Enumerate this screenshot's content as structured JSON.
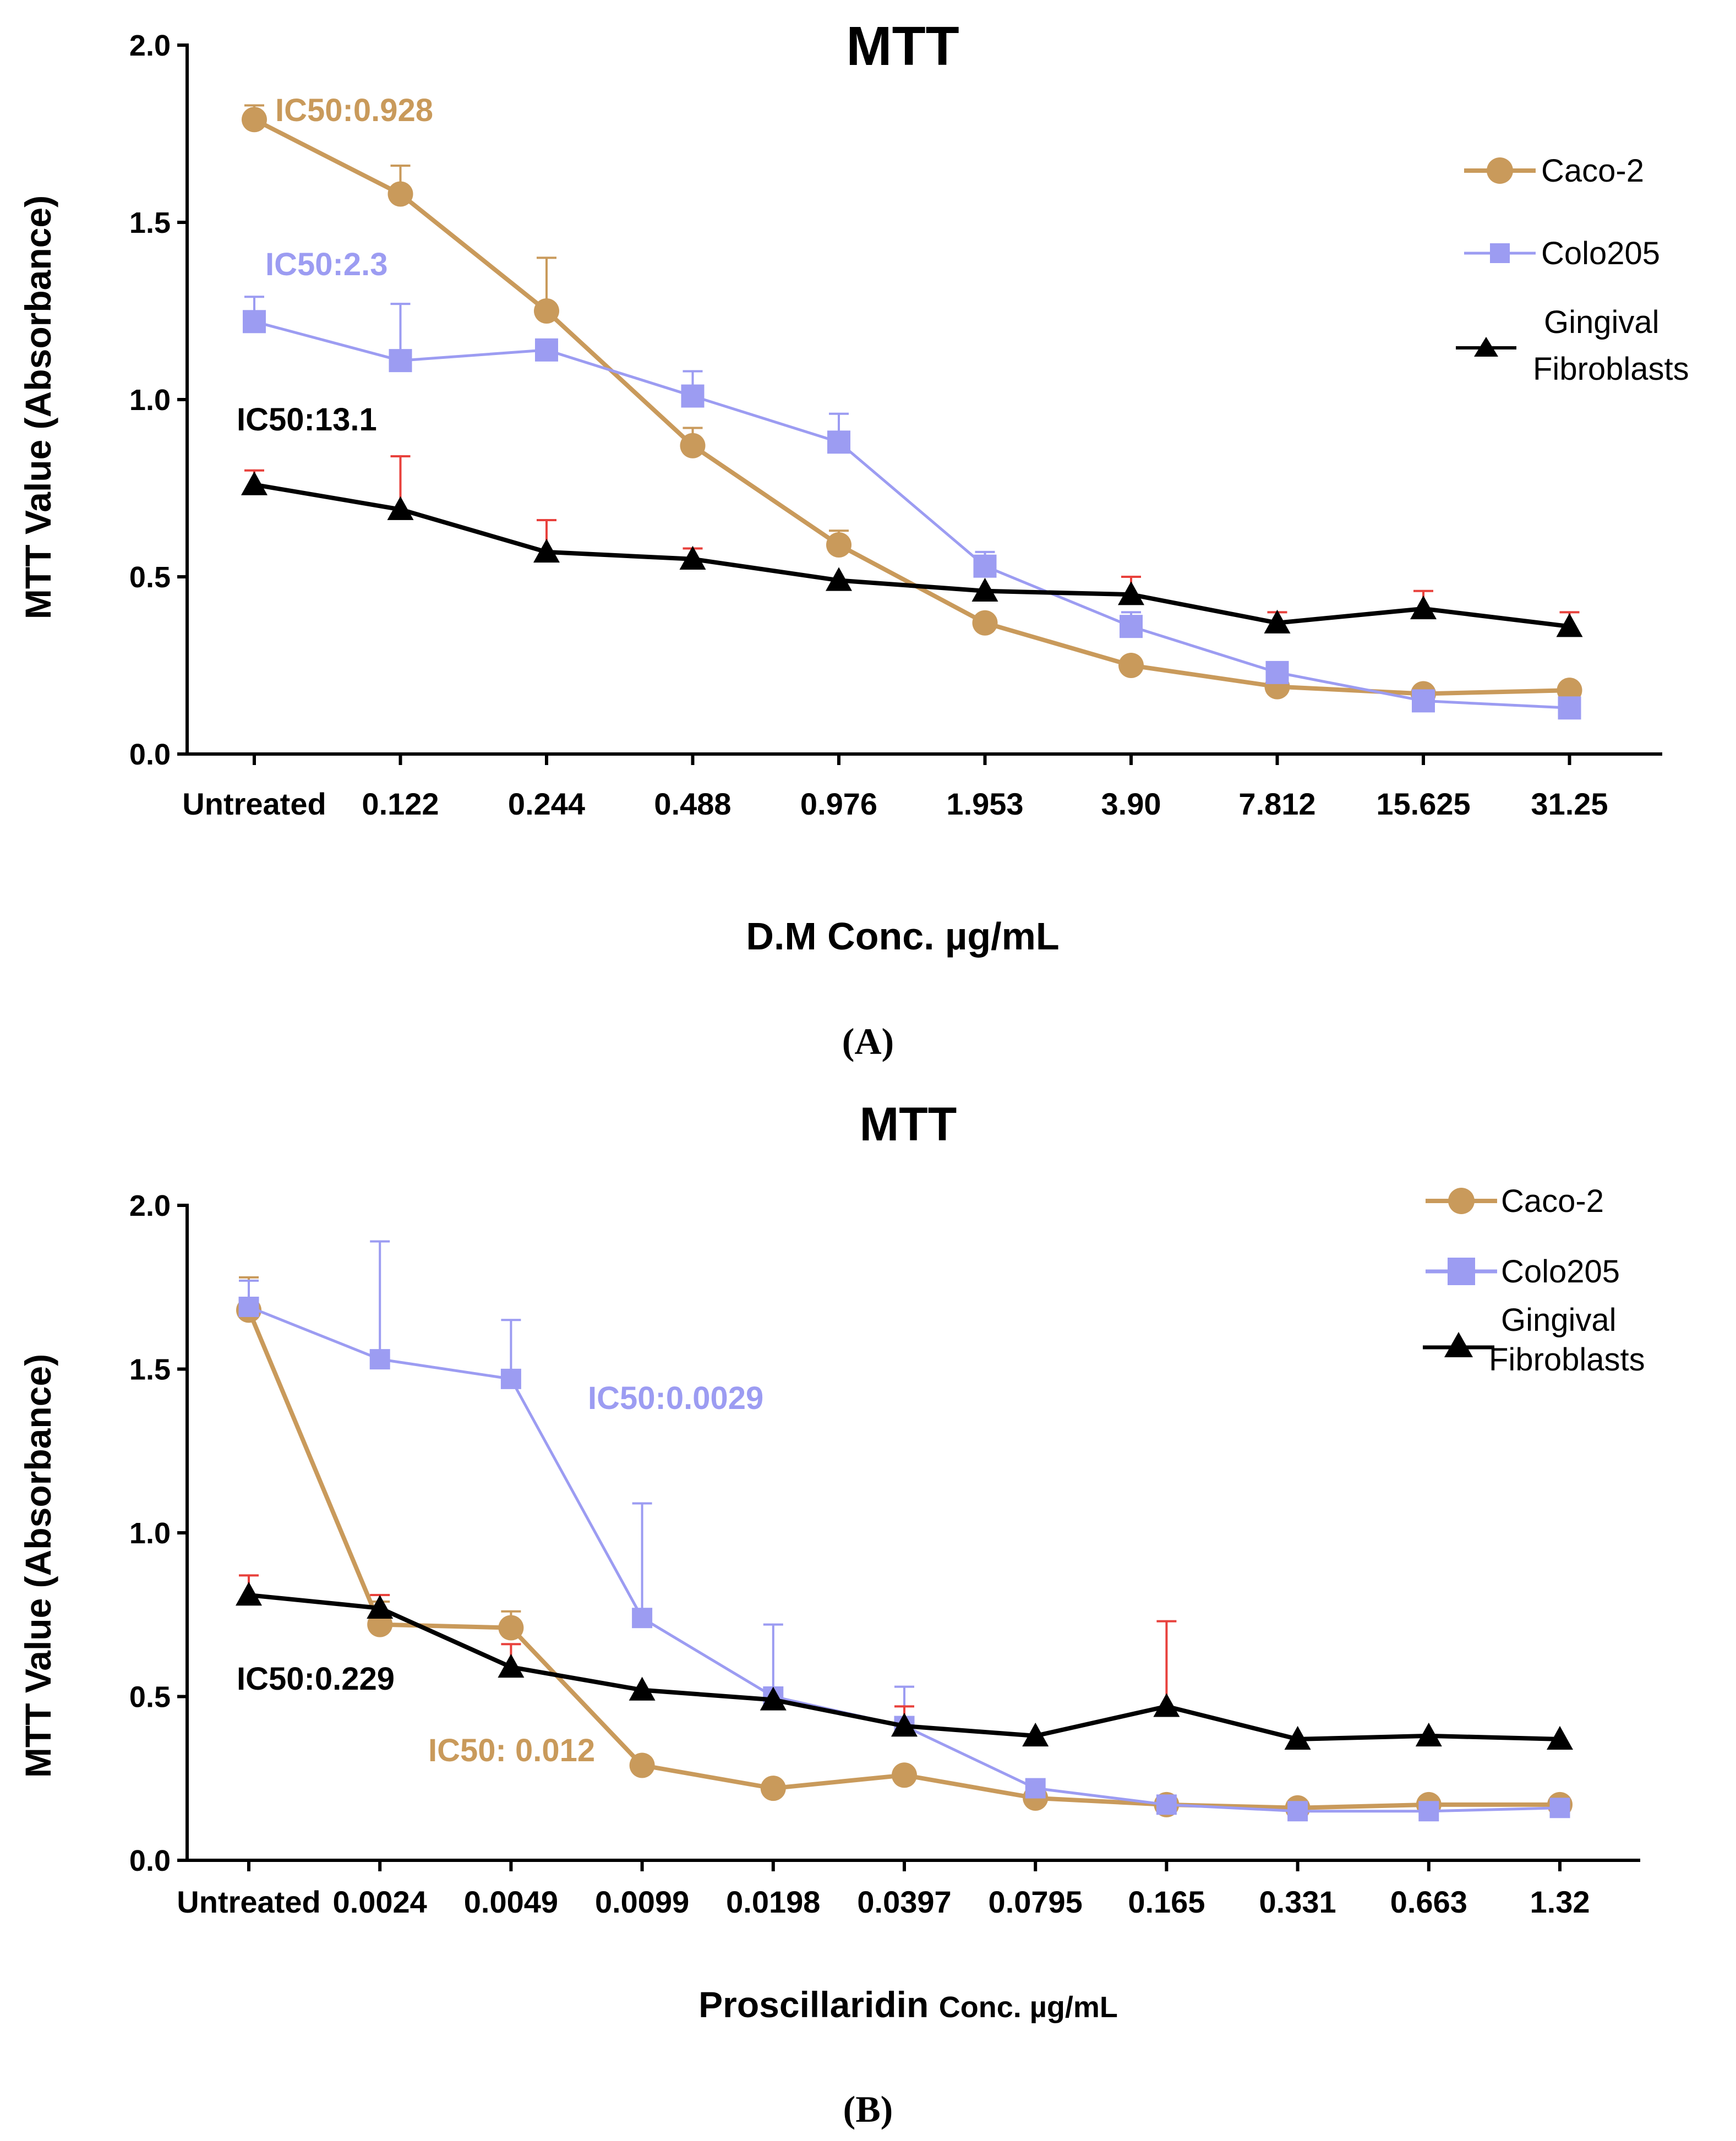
{
  "colors": {
    "caco2": "#C99A5B",
    "colo205": "#9C9CF2",
    "gingival": "#000000",
    "gingival_error": "#E8413C",
    "ic50_caco2": "#C99A5B",
    "ic50_colo205": "#9C9CF2",
    "ic50_gingival": "#000000"
  },
  "chart_data": [
    {
      "type": "line",
      "panel_label": "(A)",
      "title": "MTT",
      "ylabel": "MTT Value (Absorbance)",
      "xlabel": "D.M Conc. µg/mL",
      "ylim": [
        0,
        2.0
      ],
      "yticks": [
        "0.0",
        "0.5",
        "1.0",
        "1.5",
        "2.0"
      ],
      "categories": [
        "Untreated",
        "0.122",
        "0.244",
        "0.488",
        "0.976",
        "1.953",
        "3.90",
        "7.812",
        "15.625",
        "31.25"
      ],
      "legend_position": "top-right",
      "series": [
        {
          "name": "Caco-2",
          "marker": "circle",
          "values": [
            1.79,
            1.58,
            1.25,
            0.87,
            0.59,
            0.37,
            0.25,
            0.19,
            0.17,
            0.18
          ],
          "errors": [
            0.04,
            0.08,
            0.15,
            0.05,
            0.04,
            0.0,
            0.0,
            0.0,
            0.0,
            0.0
          ]
        },
        {
          "name": "Colo205",
          "marker": "square",
          "values": [
            1.22,
            1.11,
            1.14,
            1.01,
            0.88,
            0.53,
            0.36,
            0.23,
            0.15,
            0.13
          ],
          "errors": [
            0.07,
            0.16,
            0.0,
            0.07,
            0.08,
            0.04,
            0.04,
            0.0,
            0.0,
            0.0
          ]
        },
        {
          "name": "Gingival Fibroblasts",
          "marker": "triangle",
          "values": [
            0.76,
            0.69,
            0.57,
            0.55,
            0.49,
            0.46,
            0.45,
            0.37,
            0.41,
            0.36
          ],
          "errors": [
            0.04,
            0.15,
            0.09,
            0.03,
            0.0,
            0.0,
            0.05,
            0.03,
            0.05,
            0.04
          ]
        }
      ],
      "legend": {
        "caco2": "Caco-2",
        "colo205": "Colo205",
        "gingival_line1": "Gingival",
        "gingival_line2": "Fibroblasts"
      },
      "annotations": {
        "caco2": "IC50:0.928",
        "colo205": "IC50:2.3",
        "gingival": "IC50:13.1"
      }
    },
    {
      "type": "line",
      "panel_label": "(B)",
      "title": "MTT",
      "ylabel": "MTT Value (Absorbance)",
      "xlabel_main": "Proscillaridin",
      "xlabel_rest": "Conc. µg/mL",
      "ylim": [
        0,
        2.0
      ],
      "yticks": [
        "0.0",
        "0.5",
        "1.0",
        "1.5",
        "2.0"
      ],
      "categories": [
        "Untreated",
        "0.0024",
        "0.0049",
        "0.0099",
        "0.0198",
        "0.0397",
        "0.0795",
        "0.165",
        "0.331",
        "0.663",
        "1.32"
      ],
      "legend_position": "top-right",
      "series": [
        {
          "name": "Caco-2",
          "marker": "circle",
          "values": [
            1.68,
            0.72,
            0.71,
            0.29,
            0.22,
            0.26,
            0.19,
            0.17,
            0.16,
            0.17,
            0.17
          ],
          "errors": [
            0.1,
            0.07,
            0.05,
            0.0,
            0.0,
            0.0,
            0.0,
            0.0,
            0.0,
            0.0,
            0.0
          ]
        },
        {
          "name": "Colo205",
          "marker": "square",
          "values": [
            1.69,
            1.53,
            1.47,
            0.74,
            0.5,
            0.41,
            0.22,
            0.17,
            0.15,
            0.15,
            0.16
          ],
          "errors": [
            0.08,
            0.36,
            0.18,
            0.35,
            0.22,
            0.12,
            0.0,
            0.0,
            0.0,
            0.0,
            0.0
          ]
        },
        {
          "name": "Gingival Fibroblasts",
          "marker": "triangle",
          "values": [
            0.81,
            0.77,
            0.59,
            0.52,
            0.49,
            0.41,
            0.38,
            0.47,
            0.37,
            0.38,
            0.37
          ],
          "errors": [
            0.06,
            0.04,
            0.07,
            0.0,
            0.0,
            0.06,
            0.0,
            0.26,
            0.0,
            0.0,
            0.0
          ]
        }
      ],
      "legend": {
        "caco2": "Caco-2",
        "colo205": "Colo205",
        "gingival_line1": "Gingival",
        "gingival_line2": "Fibroblasts"
      },
      "annotations": {
        "colo205": "IC50:0.0029",
        "gingival": "IC50:0.229",
        "caco2": "IC50: 0.012"
      }
    }
  ]
}
